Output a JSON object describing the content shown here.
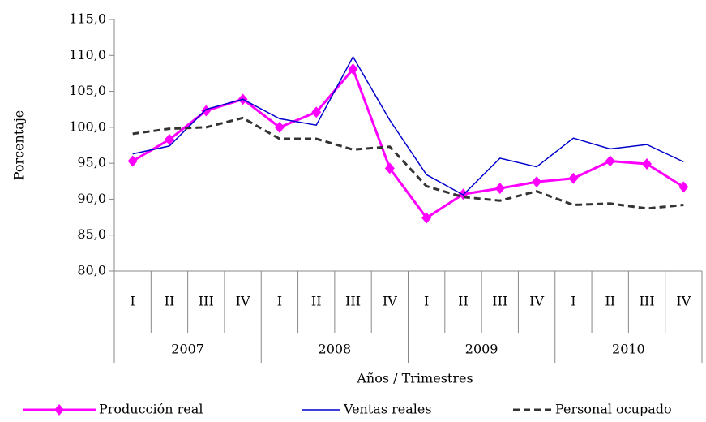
{
  "chart_data": {
    "type": "line",
    "y_label": "Porcentaje",
    "x_label": "Años / Trimestres",
    "categories": [
      "I",
      "II",
      "III",
      "IV",
      "I",
      "II",
      "III",
      "IV",
      "I",
      "II",
      "III",
      "IV",
      "I",
      "II",
      "III",
      "IV"
    ],
    "groups": [
      "2007",
      "2008",
      "2009",
      "2010"
    ],
    "series": [
      {
        "name": "Producción real",
        "color": "#ff00ff",
        "line_style": "solid",
        "marker": "diamond",
        "values": [
          95.3,
          98.3,
          102.3,
          103.9,
          100.0,
          102.1,
          108.1,
          94.3,
          87.4,
          90.7,
          91.5,
          92.4,
          92.9,
          95.3,
          94.9,
          91.7
        ]
      },
      {
        "name": "Ventas reales",
        "color": "#0000cc",
        "line_style": "solid",
        "values": [
          96.3,
          97.4,
          102.5,
          103.9,
          101.2,
          100.3,
          109.8,
          101.0,
          93.4,
          90.6,
          95.7,
          94.5,
          98.5,
          97.0,
          97.6,
          95.2
        ]
      },
      {
        "name": "Personal ocupado",
        "color": "#333333",
        "line_style": "dashed",
        "values": [
          99.1,
          99.8,
          100.0,
          101.3,
          98.4,
          98.4,
          96.9,
          97.3,
          91.8,
          90.3,
          89.8,
          91.1,
          89.2,
          89.4,
          88.7,
          89.2
        ]
      }
    ],
    "ylim": [
      80,
      115
    ],
    "yticks": [
      {
        "value": 80,
        "label": "80,0"
      },
      {
        "value": 85,
        "label": "85,0"
      },
      {
        "value": 90,
        "label": "90,0"
      },
      {
        "value": 95,
        "label": "95,0"
      },
      {
        "value": 100,
        "label": "100,0"
      },
      {
        "value": 105,
        "label": "105,0"
      },
      {
        "value": 110,
        "label": "110,0"
      },
      {
        "value": 115,
        "label": "115,0"
      }
    ],
    "grid": false
  }
}
